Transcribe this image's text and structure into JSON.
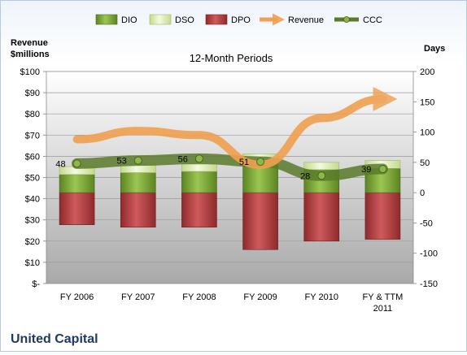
{
  "chart_data": {
    "type": "bar",
    "subtitle": "12-Month Periods",
    "company": "United Capital",
    "ylabel_left": "Revenue\n$millions",
    "ylabel_right": "Days",
    "categories": [
      "FY 2006",
      "FY 2007",
      "FY 2008",
      "FY 2009",
      "FY 2010",
      "FY & TTM\n2011"
    ],
    "left_axis": {
      "ylim": [
        0,
        100
      ],
      "ticks": [
        0,
        10,
        20,
        30,
        40,
        50,
        60,
        70,
        80,
        90,
        100
      ],
      "tick_labels": [
        "$-",
        "$10",
        "$20",
        "$30",
        "$40",
        "$50",
        "$60",
        "$70",
        "$80",
        "$90",
        "$100"
      ]
    },
    "right_axis": {
      "ylim": [
        -150,
        200
      ],
      "ticks": [
        -150,
        -100,
        -50,
        0,
        50,
        100,
        150,
        200
      ],
      "tick_labels": [
        "-150",
        "-100",
        "-50",
        "0",
        "50",
        "100",
        "150",
        "200"
      ]
    },
    "series": [
      {
        "name": "DIO",
        "axis": "right",
        "kind": "stacked-bar",
        "color": "#6f9a2e",
        "values": [
          30,
          33,
          35,
          47,
          38,
          40
        ]
      },
      {
        "name": "DSO",
        "axis": "right",
        "kind": "stacked-bar",
        "color": "#d9ebb0",
        "values": [
          13,
          13,
          12,
          17,
          12,
          13
        ]
      },
      {
        "name": "DPO",
        "axis": "right",
        "kind": "negative-bar",
        "color": "#b3383c",
        "values": [
          -53,
          -57,
          -57,
          -94,
          -80,
          -77
        ]
      },
      {
        "name": "Revenue",
        "axis": "left",
        "kind": "line",
        "color": "#f0a050",
        "values": [
          68,
          72,
          70,
          56,
          78,
          87
        ]
      },
      {
        "name": "CCC",
        "axis": "right",
        "kind": "line",
        "color": "#5a7a2a",
        "values": [
          48,
          53,
          56,
          51,
          28,
          39
        ],
        "labels": [
          "48",
          "53",
          "56",
          "51",
          "28",
          "39"
        ]
      }
    ],
    "grid": true,
    "legend": "top"
  }
}
